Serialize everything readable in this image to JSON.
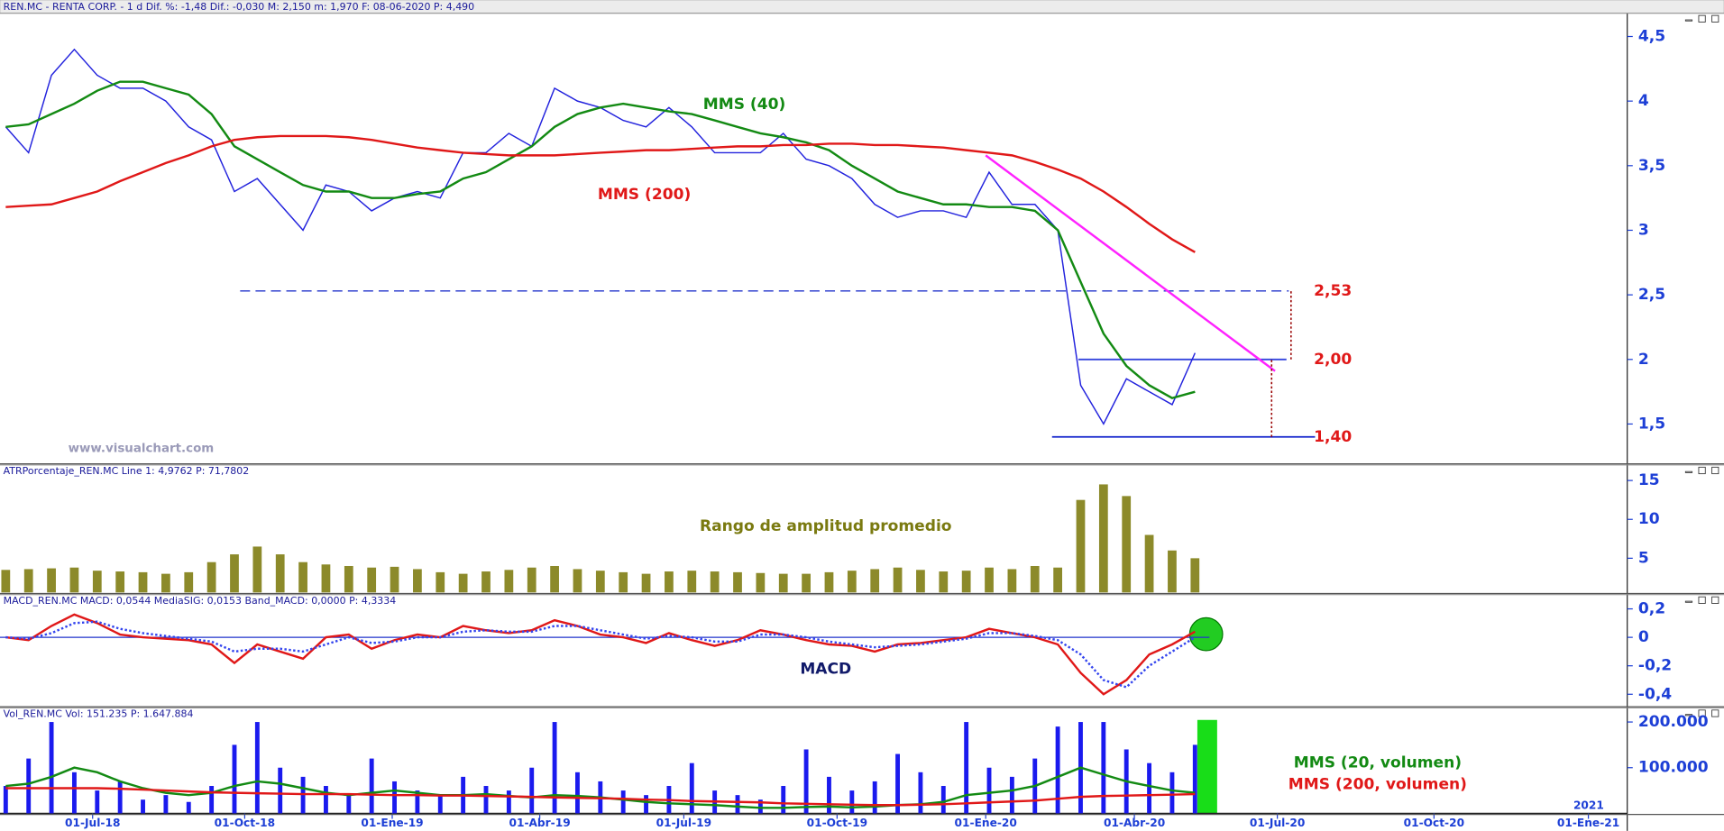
{
  "header": "REN.MC - RENTA CORP. -  1 d  Dif. %: -1,48  Dif.: -0,030  M: 2,150  m: 1,970  F: 08-06-2020  P: 4,490",
  "watermark": "www.visualchart.com",
  "x_axis": {
    "x": [
      0,
      2,
      4,
      6,
      8,
      10,
      12,
      14,
      16,
      18,
      20,
      22,
      24,
      26,
      28,
      30,
      32,
      34,
      36,
      38,
      40,
      42,
      44,
      46,
      48,
      50,
      52,
      54,
      56,
      58,
      60,
      62,
      64,
      66,
      68,
      70,
      72,
      74,
      76,
      78,
      80,
      82,
      84,
      86,
      88,
      90,
      92,
      94,
      96,
      98,
      100,
      102,
      104
    ],
    "xlim": [
      -0.5,
      141.8
    ],
    "xticks": [
      {
        "value": 7.6,
        "label": "01-Jul-18"
      },
      {
        "value": 20.9,
        "label": "01-Oct-18"
      },
      {
        "value": 33.8,
        "label": "01-Ene-19"
      },
      {
        "value": 46.7,
        "label": "01-Abr-19"
      },
      {
        "value": 59.3,
        "label": "01-Jul-19"
      },
      {
        "value": 72.7,
        "label": "01-Oct-19"
      },
      {
        "value": 85.7,
        "label": "01-Ene-20"
      },
      {
        "value": 98.7,
        "label": "01-Abr-20"
      },
      {
        "value": 111.2,
        "label": "01-Jul-20"
      },
      {
        "value": 124.9,
        "label": "01-Oct-20"
      },
      {
        "value": 138.4,
        "label": "01-Ene-21"
      }
    ],
    "year_label": "2021"
  },
  "chart_data": [
    {
      "type": "line",
      "ylim": [
        1.2,
        4.68
      ],
      "yticks": [
        {
          "value": 4.5,
          "label": "4,5"
        },
        4,
        {
          "value": 3.5,
          "label": "3,5"
        },
        3,
        {
          "value": 2.5,
          "label": "2,5"
        },
        2,
        {
          "value": 1.5,
          "label": "1,5"
        }
      ],
      "series": [
        {
          "color": "#2222dd",
          "values": [
            3.8,
            3.6,
            4.2,
            4.4,
            4.2,
            4.1,
            4.1,
            4.0,
            3.8,
            3.7,
            3.3,
            3.4,
            3.2,
            3.0,
            3.35,
            3.3,
            3.15,
            3.25,
            3.3,
            3.25,
            3.6,
            3.6,
            3.75,
            3.65,
            4.1,
            4.0,
            3.95,
            3.85,
            3.8,
            3.95,
            3.8,
            3.6,
            3.6,
            3.6,
            3.75,
            3.55,
            3.5,
            3.4,
            3.2,
            3.1,
            3.15,
            3.15,
            3.1,
            3.45,
            3.2,
            3.2,
            3.0,
            1.8,
            1.5,
            1.85,
            1.75,
            1.65,
            2.05
          ]
        },
        {
          "name": "MMS (40)",
          "color": "#138a13",
          "values": [
            3.8,
            3.82,
            3.9,
            3.98,
            4.08,
            4.15,
            4.15,
            4.1,
            4.05,
            3.9,
            3.65,
            3.55,
            3.45,
            3.35,
            3.3,
            3.3,
            3.25,
            3.25,
            3.28,
            3.3,
            3.4,
            3.45,
            3.55,
            3.65,
            3.8,
            3.9,
            3.95,
            3.98,
            3.95,
            3.92,
            3.9,
            3.85,
            3.8,
            3.75,
            3.72,
            3.68,
            3.62,
            3.5,
            3.4,
            3.3,
            3.25,
            3.2,
            3.2,
            3.18,
            3.18,
            3.15,
            3.0,
            2.6,
            2.2,
            1.95,
            1.8,
            1.7,
            1.75
          ]
        },
        {
          "name": "MMS (200)",
          "color": "#e01818",
          "values": [
            3.18,
            3.19,
            3.2,
            3.25,
            3.3,
            3.38,
            3.45,
            3.52,
            3.58,
            3.65,
            3.7,
            3.72,
            3.73,
            3.73,
            3.73,
            3.72,
            3.7,
            3.67,
            3.64,
            3.62,
            3.6,
            3.59,
            3.58,
            3.58,
            3.58,
            3.59,
            3.6,
            3.61,
            3.62,
            3.62,
            3.63,
            3.64,
            3.65,
            3.65,
            3.66,
            3.66,
            3.67,
            3.67,
            3.66,
            3.66,
            3.65,
            3.64,
            3.62,
            3.6,
            3.58,
            3.53,
            3.47,
            3.4,
            3.3,
            3.18,
            3.05,
            2.93,
            2.83
          ]
        }
      ],
      "levels": [
        {
          "value": 2.53,
          "label": "2,53",
          "from": 20.5,
          "to": 112.2,
          "color": "#2233cc",
          "dashed": true
        },
        {
          "value": 2.0,
          "label": "2,00",
          "from": 93.8,
          "to": 112.0,
          "color": "#3344dd",
          "dashed": false
        },
        {
          "value": 1.4,
          "label": "1,40",
          "from": 91.5,
          "to": 114.5,
          "color": "#1122cc",
          "dashed": false
        }
      ],
      "trendline": {
        "x": [
          85.7,
          111.0
        ],
        "y": [
          3.58,
          1.91
        ],
        "color": "#ff22ff"
      },
      "targets": [
        {
          "x": 112.4,
          "y": [
            2.0,
            2.53
          ],
          "color": "#990000"
        },
        {
          "x": 110.7,
          "y": [
            1.4,
            2.0
          ],
          "color": "#990000"
        }
      ]
    },
    {
      "type": "bar",
      "header": "ATRPorcentaje_REN.MC  Line 1: 4,9762  P: 71,7802",
      "annotation": "Rango de amplitud promedio",
      "ylim": [
        0.6,
        17
      ],
      "yticks": [
        15,
        10,
        5
      ],
      "series": [
        {
          "color": "#8c8a2a",
          "values": [
            3.5,
            3.6,
            3.7,
            3.8,
            3.4,
            3.3,
            3.2,
            3.0,
            3.2,
            4.5,
            5.5,
            6.5,
            5.5,
            4.5,
            4.2,
            4.0,
            3.8,
            3.9,
            3.6,
            3.2,
            3.0,
            3.3,
            3.5,
            3.8,
            4.0,
            3.6,
            3.4,
            3.2,
            3.0,
            3.3,
            3.4,
            3.3,
            3.2,
            3.1,
            3.0,
            3.0,
            3.2,
            3.4,
            3.6,
            3.8,
            3.5,
            3.3,
            3.4,
            3.8,
            3.6,
            4.0,
            3.8,
            12.5,
            14.5,
            13.0,
            8.0,
            6.0,
            5.0
          ]
        }
      ]
    },
    {
      "type": "line",
      "header": "MACD_REN.MC  MACD: 0,0544  MediaSIG: 0,0153  Band_MACD: 0,0000  P: 4,3334",
      "ylim": [
        -0.48,
        0.3
      ],
      "yticks": [
        {
          "value": 0.2,
          "label": "0,2"
        },
        0,
        {
          "value": -0.2,
          "label": "-0,2"
        },
        {
          "value": -0.4,
          "label": "-0,4"
        }
      ],
      "zero_line": 0,
      "series": [
        {
          "name": "MACD",
          "color": "#e01818",
          "values": [
            0.0,
            -0.02,
            0.08,
            0.16,
            0.1,
            0.02,
            0.0,
            -0.01,
            -0.02,
            -0.05,
            -0.18,
            -0.05,
            -0.1,
            -0.15,
            0.0,
            0.02,
            -0.08,
            -0.02,
            0.02,
            0.0,
            0.08,
            0.05,
            0.03,
            0.05,
            0.12,
            0.08,
            0.02,
            0.0,
            -0.04,
            0.03,
            -0.02,
            -0.06,
            -0.02,
            0.05,
            0.02,
            -0.02,
            -0.05,
            -0.06,
            -0.1,
            -0.05,
            -0.04,
            -0.02,
            0.0,
            0.06,
            0.03,
            0.0,
            -0.05,
            -0.25,
            -0.4,
            -0.3,
            -0.12,
            -0.05,
            0.04
          ]
        },
        {
          "color": "#3344ee",
          "dashed": true,
          "values": [
            0,
            -0.01,
            0.03,
            0.1,
            0.11,
            0.06,
            0.03,
            0.01,
            -0.01,
            -0.03,
            -0.1,
            -0.08,
            -0.08,
            -0.1,
            -0.05,
            0.0,
            -0.04,
            -0.03,
            0.0,
            0.0,
            0.04,
            0.05,
            0.04,
            0.04,
            0.08,
            0.08,
            0.05,
            0.02,
            -0.01,
            0.01,
            0.0,
            -0.03,
            -0.03,
            0.02,
            0.02,
            0.0,
            -0.03,
            -0.05,
            -0.07,
            -0.06,
            -0.05,
            -0.03,
            -0.01,
            0.03,
            0.03,
            0.01,
            -0.02,
            -0.12,
            -0.3,
            -0.35,
            -0.2,
            -0.1,
            0.0
          ]
        }
      ]
    },
    {
      "type": "bar",
      "header": "Vol_REN.MC  Vol: 151.235  P: 1.647.884",
      "ylim": [
        0,
        231000
      ],
      "yticks": [
        {
          "value": 200000,
          "label": "200.000"
        },
        {
          "value": 100000,
          "label": "100.000"
        }
      ],
      "series": [
        {
          "color": "#1a1aee",
          "values": [
            60000,
            120000,
            200000,
            90000,
            50000,
            70000,
            30000,
            40000,
            25000,
            60000,
            150000,
            200000,
            100000,
            80000,
            60000,
            40000,
            120000,
            70000,
            50000,
            40000,
            80000,
            60000,
            50000,
            100000,
            200000,
            90000,
            70000,
            50000,
            40000,
            60000,
            110000,
            50000,
            40000,
            30000,
            60000,
            140000,
            80000,
            50000,
            70000,
            130000,
            90000,
            60000,
            200000,
            100000,
            80000,
            120000,
            190000,
            200000,
            200000,
            140000,
            110000,
            90000,
            150000
          ]
        },
        {
          "name": "MMS (20, volumen)",
          "color": "#138a13",
          "type": "line",
          "values": [
            60000,
            65000,
            80000,
            100000,
            90000,
            70000,
            55000,
            45000,
            40000,
            45000,
            60000,
            70000,
            65000,
            55000,
            45000,
            40000,
            45000,
            50000,
            45000,
            40000,
            40000,
            42000,
            38000,
            35000,
            40000,
            38000,
            35000,
            30000,
            25000,
            22000,
            20000,
            18000,
            15000,
            12000,
            12000,
            14000,
            15000,
            13000,
            15000,
            18000,
            20000,
            25000,
            40000,
            45000,
            50000,
            60000,
            80000,
            100000,
            85000,
            70000,
            60000,
            50000,
            45000
          ]
        },
        {
          "name": "MMS (200, volumen)",
          "color": "#e01818",
          "type": "line",
          "values": [
            55000,
            55000,
            55000,
            55000,
            55000,
            54000,
            52000,
            50000,
            48000,
            46000,
            45000,
            44000,
            43000,
            42000,
            42000,
            42000,
            41000,
            40000,
            40000,
            39000,
            39000,
            38000,
            37000,
            36000,
            35000,
            34000,
            33000,
            32000,
            30000,
            29000,
            27000,
            26000,
            25000,
            24000,
            22000,
            21000,
            20000,
            19000,
            18000,
            18000,
            19000,
            20000,
            22000,
            24000,
            26000,
            28000,
            32000,
            36000,
            38000,
            39000,
            40000,
            41000,
            42000
          ]
        }
      ]
    }
  ]
}
